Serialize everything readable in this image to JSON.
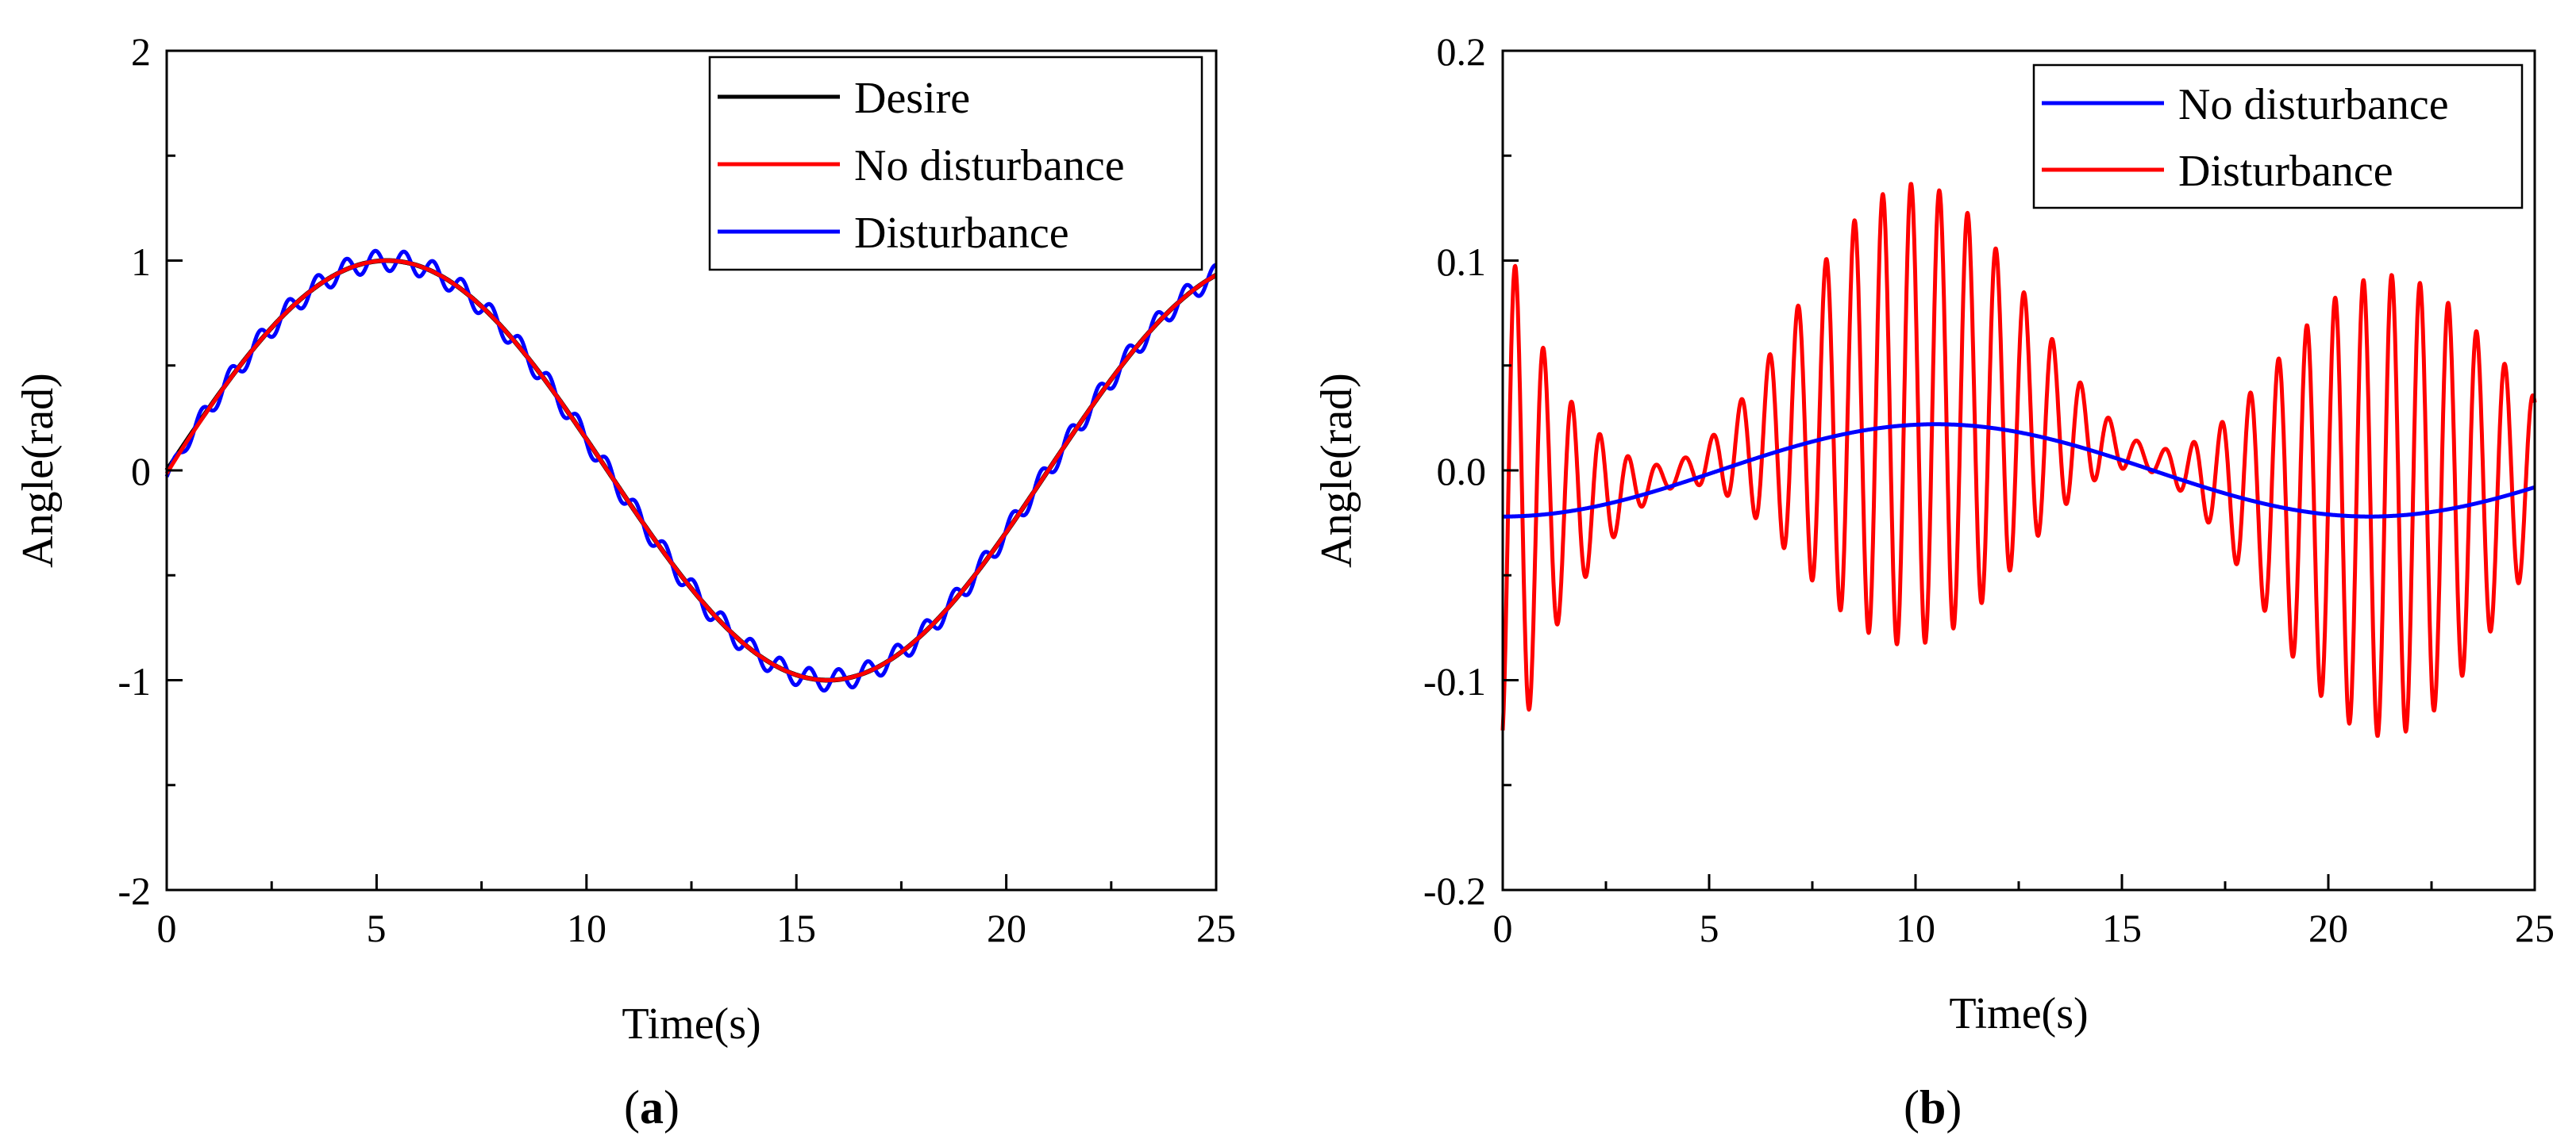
{
  "chart_data": [
    {
      "type": "line",
      "panel_label": "a",
      "xlabel": "Time(s)",
      "ylabel": "Angle(rad)",
      "xlim": [
        0,
        25
      ],
      "ylim": [
        -2,
        2
      ],
      "xticks": [
        "0",
        "5",
        "10",
        "15",
        "20",
        "25"
      ],
      "yticks": [
        "-2",
        "-1",
        "0",
        "1",
        "2"
      ],
      "legend_position": "top-right",
      "series": [
        {
          "name": "Desire",
          "color": "#000000",
          "formula": "sin(2*pi*t/21)",
          "points": [
            [
              0,
              0
            ],
            [
              2.5,
              0.68
            ],
            [
              5.25,
              1.0
            ],
            [
              7.5,
              0.78
            ],
            [
              10.5,
              0.0
            ],
            [
              13,
              -0.72
            ],
            [
              15.75,
              -1.0
            ],
            [
              18.5,
              -0.7
            ],
            [
              21,
              0.0
            ],
            [
              23.5,
              0.68
            ],
            [
              25,
              0.93
            ]
          ]
        },
        {
          "name": "No disturbance",
          "color": "#ff0000",
          "formula": "sin(2*pi*t/21) with small tracking error",
          "points": [
            [
              0,
              0
            ],
            [
              2.5,
              0.68
            ],
            [
              5.25,
              1.0
            ],
            [
              7.5,
              0.78
            ],
            [
              10.5,
              0.0
            ],
            [
              13,
              -0.72
            ],
            [
              15.75,
              -1.0
            ],
            [
              18.5,
              -0.7
            ],
            [
              21,
              0.0
            ],
            [
              23.5,
              0.68
            ],
            [
              25,
              0.93
            ]
          ]
        },
        {
          "name": "Disturbance",
          "color": "#0000ff",
          "formula": "sin(2*pi*t/21) + oscillation ~0.05 rad at ~1.45 Hz",
          "points": [
            [
              0,
              0
            ],
            [
              0.17,
              -0.03
            ],
            [
              5.1,
              1.03
            ],
            [
              10.1,
              0.1
            ],
            [
              15.8,
              -1.0
            ],
            [
              20.3,
              -0.2
            ],
            [
              25,
              0.93
            ]
          ]
        }
      ]
    },
    {
      "type": "line",
      "panel_label": "b",
      "xlabel": "Time(s)",
      "ylabel": "Angle(rad)",
      "xlim": [
        0,
        25
      ],
      "ylim": [
        -0.2,
        0.2
      ],
      "xticks": [
        "0",
        "5",
        "10",
        "15",
        "20",
        "25"
      ],
      "yticks": [
        "-0.2",
        "-0.1",
        "0.0",
        "0.1",
        "0.2"
      ],
      "legend_position": "top-right",
      "series": [
        {
          "name": "No disturbance",
          "color": "#0000ff",
          "formula": "-0.022*cos(2*pi*t/21)",
          "points": [
            [
              0,
              -0.022
            ],
            [
              5.25,
              0.0
            ],
            [
              10.5,
              0.022
            ],
            [
              15.75,
              0.0
            ],
            [
              21,
              -0.022
            ],
            [
              25,
              -0.009
            ]
          ]
        },
        {
          "name": "Disturbance",
          "color": "#ff0000",
          "formula": "tracking error + oscillation ~1.45 Hz with beating envelope",
          "points": [
            [
              0.2,
              -0.104
            ],
            [
              0.45,
              0.072
            ],
            [
              1.15,
              0.078
            ],
            [
              4.5,
              0.036
            ],
            [
              10.0,
              0.118
            ],
            [
              10.8,
              -0.074
            ],
            [
              16.5,
              -0.005
            ],
            [
              19.4,
              0.05
            ],
            [
              20.3,
              -0.1
            ],
            [
              21.0,
              -0.115
            ],
            [
              22.0,
              0.078
            ],
            [
              25,
              0.02
            ]
          ]
        }
      ]
    }
  ]
}
